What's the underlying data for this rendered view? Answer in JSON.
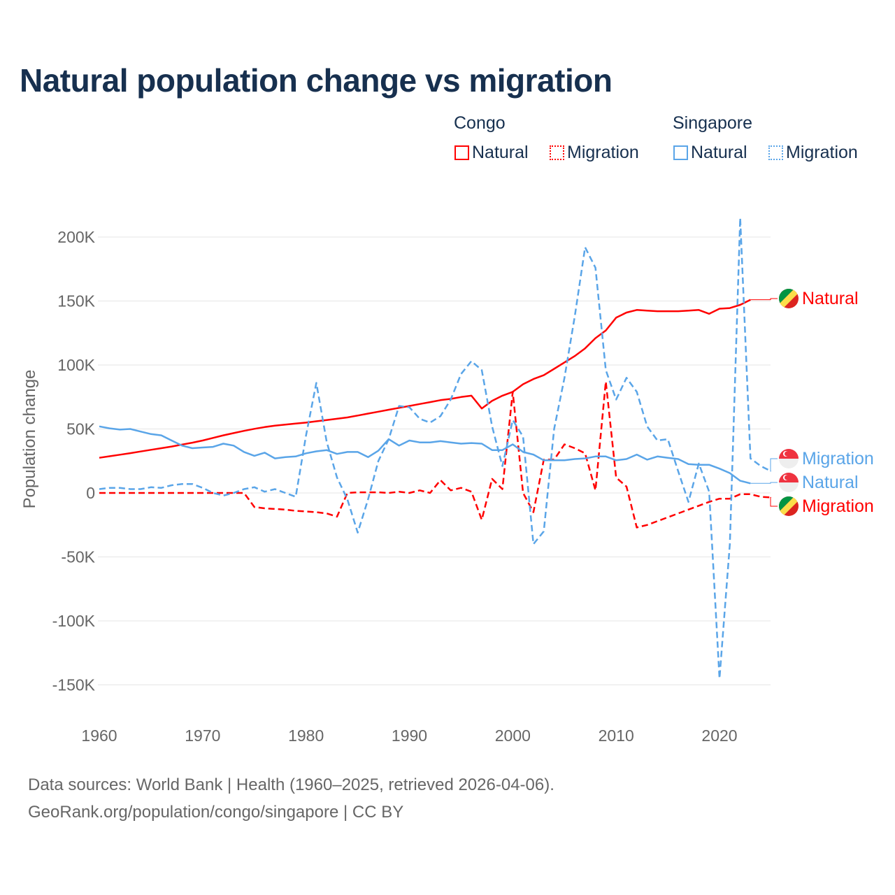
{
  "chart_data": {
    "type": "line",
    "title": "Natural population change vs migration",
    "ylabel": "Population change",
    "xlabel": "",
    "xlim": [
      1960,
      2025
    ],
    "ylim": [
      -150000,
      200000
    ],
    "x_ticks": [
      "1960",
      "1970",
      "1980",
      "1990",
      "2000",
      "2010",
      "2020"
    ],
    "y_ticks": [
      {
        "v": 200000,
        "label": "200K"
      },
      {
        "v": 150000,
        "label": "150K"
      },
      {
        "v": 100000,
        "label": "100K"
      },
      {
        "v": 50000,
        "label": "50K"
      },
      {
        "v": 0,
        "label": "0"
      },
      {
        "v": -50000,
        "label": "-50K"
      },
      {
        "v": -100000,
        "label": "-100K"
      },
      {
        "v": -150000,
        "label": "-150K"
      }
    ],
    "grid": true,
    "legend_position": "top-right",
    "legend": {
      "groups": [
        {
          "label": "Congo",
          "items": [
            "Natural",
            "Migration"
          ]
        },
        {
          "label": "Singapore",
          "items": [
            "Natural",
            "Migration"
          ]
        }
      ]
    },
    "series": [
      {
        "name": "Congo Natural",
        "country": "Congo",
        "kind": "Natural",
        "color": "#ff0000",
        "dashed": false,
        "start_year": 1960,
        "end_label": "Natural",
        "values": [
          27.5,
          28.7,
          29.9,
          31.1,
          32.4,
          33.7,
          35,
          36.3,
          37.8,
          39.3,
          41,
          43,
          45,
          46.8,
          48.5,
          50.1,
          51.5,
          52.6,
          53.4,
          54.2,
          55,
          56,
          57,
          58,
          59,
          60.5,
          62,
          63.5,
          65,
          66.5,
          68,
          69.5,
          71,
          72.5,
          73.5,
          75,
          76,
          66,
          72,
          76,
          79,
          85,
          89,
          92,
          97,
          102,
          107,
          113,
          121,
          127,
          137,
          141,
          143,
          142.5,
          142,
          142,
          142,
          142.5,
          143,
          140,
          144,
          144.5,
          147,
          151
        ]
      },
      {
        "name": "Congo Migration",
        "country": "Congo",
        "kind": "Migration",
        "color": "#ff0000",
        "dashed": true,
        "start_year": 1960,
        "end_label": "Migration",
        "values": [
          0,
          0,
          0,
          0,
          0,
          0,
          0,
          0,
          0,
          0,
          0,
          0,
          0,
          0,
          0,
          -11,
          -12,
          -12.5,
          -13,
          -14,
          -14.5,
          -15,
          -16,
          -18.5,
          0,
          0.5,
          0.5,
          0.5,
          0,
          1,
          0,
          2,
          0,
          10,
          2,
          4,
          1,
          -21,
          11,
          3,
          79,
          0,
          -15,
          26,
          26,
          38,
          35,
          31,
          2,
          87,
          12,
          5,
          -27,
          -25,
          -22,
          -19,
          -16,
          -13,
          -10,
          -7,
          -4.5,
          -4.5,
          -1,
          -1,
          -3,
          -3.5
        ]
      },
      {
        "name": "Singapore Natural",
        "country": "Singapore",
        "kind": "Natural",
        "color": "#5aa5e8",
        "dashed": false,
        "start_year": 1960,
        "end_label": "Natural",
        "values": [
          52,
          50.5,
          49.5,
          50,
          48,
          46,
          45,
          41,
          37,
          35,
          35.5,
          36,
          38.5,
          37,
          32,
          29,
          31.5,
          27,
          28,
          28.5,
          31,
          32.5,
          33.5,
          30.5,
          32,
          32,
          28,
          33,
          42,
          37,
          41,
          39.5,
          39.5,
          40.5,
          39.5,
          38.5,
          39,
          38.5,
          33.5,
          33.5,
          38,
          32,
          30,
          25.5,
          25.5,
          25.5,
          26.5,
          27,
          28.5,
          28.5,
          25.5,
          26.5,
          30,
          26,
          28.5,
          27.5,
          26.5,
          22.5,
          22,
          22,
          19,
          15.5,
          9.5,
          7.5
        ]
      },
      {
        "name": "Singapore Migration",
        "country": "Singapore",
        "kind": "Migration",
        "color": "#5aa5e8",
        "dashed": true,
        "start_year": 1960,
        "end_label": "Migration",
        "values": [
          3,
          4,
          4,
          3,
          3,
          4.5,
          4,
          6,
          7,
          7,
          4,
          0,
          -2,
          0,
          3,
          4.5,
          1,
          3,
          0,
          -3,
          45,
          86,
          40,
          12,
          -5,
          -31,
          -5,
          25,
          42,
          68,
          67,
          58,
          55,
          60,
          73,
          93,
          103,
          96,
          52,
          21,
          57,
          44,
          -40,
          -30,
          50,
          90,
          138,
          192,
          176,
          96,
          73,
          90,
          79,
          52,
          41,
          42,
          17,
          -7,
          23,
          1,
          -145,
          -40,
          215,
          27,
          21,
          17
        ]
      }
    ],
    "value_unit": "thousands"
  },
  "source": {
    "line1": "Data sources: World Bank | Health (1960–2025, retrieved 2026-04-06).",
    "line2": "GeoRank.org/population/congo/singapore | CC BY"
  }
}
